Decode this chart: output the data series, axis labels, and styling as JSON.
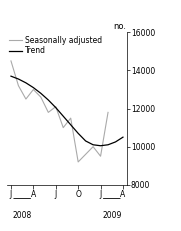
{
  "title": "",
  "ylabel": "no.",
  "ylim": [
    8000,
    16000
  ],
  "yticks": [
    8000,
    10000,
    12000,
    14000,
    16000
  ],
  "xlabel_years": [
    "2008",
    "2009"
  ],
  "x_tick_labels": [
    "J",
    "A",
    "J",
    "O",
    "J",
    "A"
  ],
  "x_tick_positions": [
    0,
    3,
    6,
    9,
    12,
    15
  ],
  "trend": [
    13700,
    13550,
    13350,
    13100,
    12800,
    12450,
    12050,
    11600,
    11150,
    10700,
    10300,
    10100,
    10050,
    10100,
    10250,
    10500
  ],
  "seasonal": [
    14500,
    13200,
    12500,
    13000,
    12600,
    11800,
    12100,
    11000,
    11500,
    9200,
    9600,
    10000,
    9500,
    11800,
    null,
    null
  ],
  "trend_color": "#000000",
  "seasonal_color": "#aaaaaa",
  "background_color": "#ffffff",
  "legend_fontsize": 5.5,
  "tick_fontsize": 5.5,
  "ylabel_fontsize": 6.0
}
